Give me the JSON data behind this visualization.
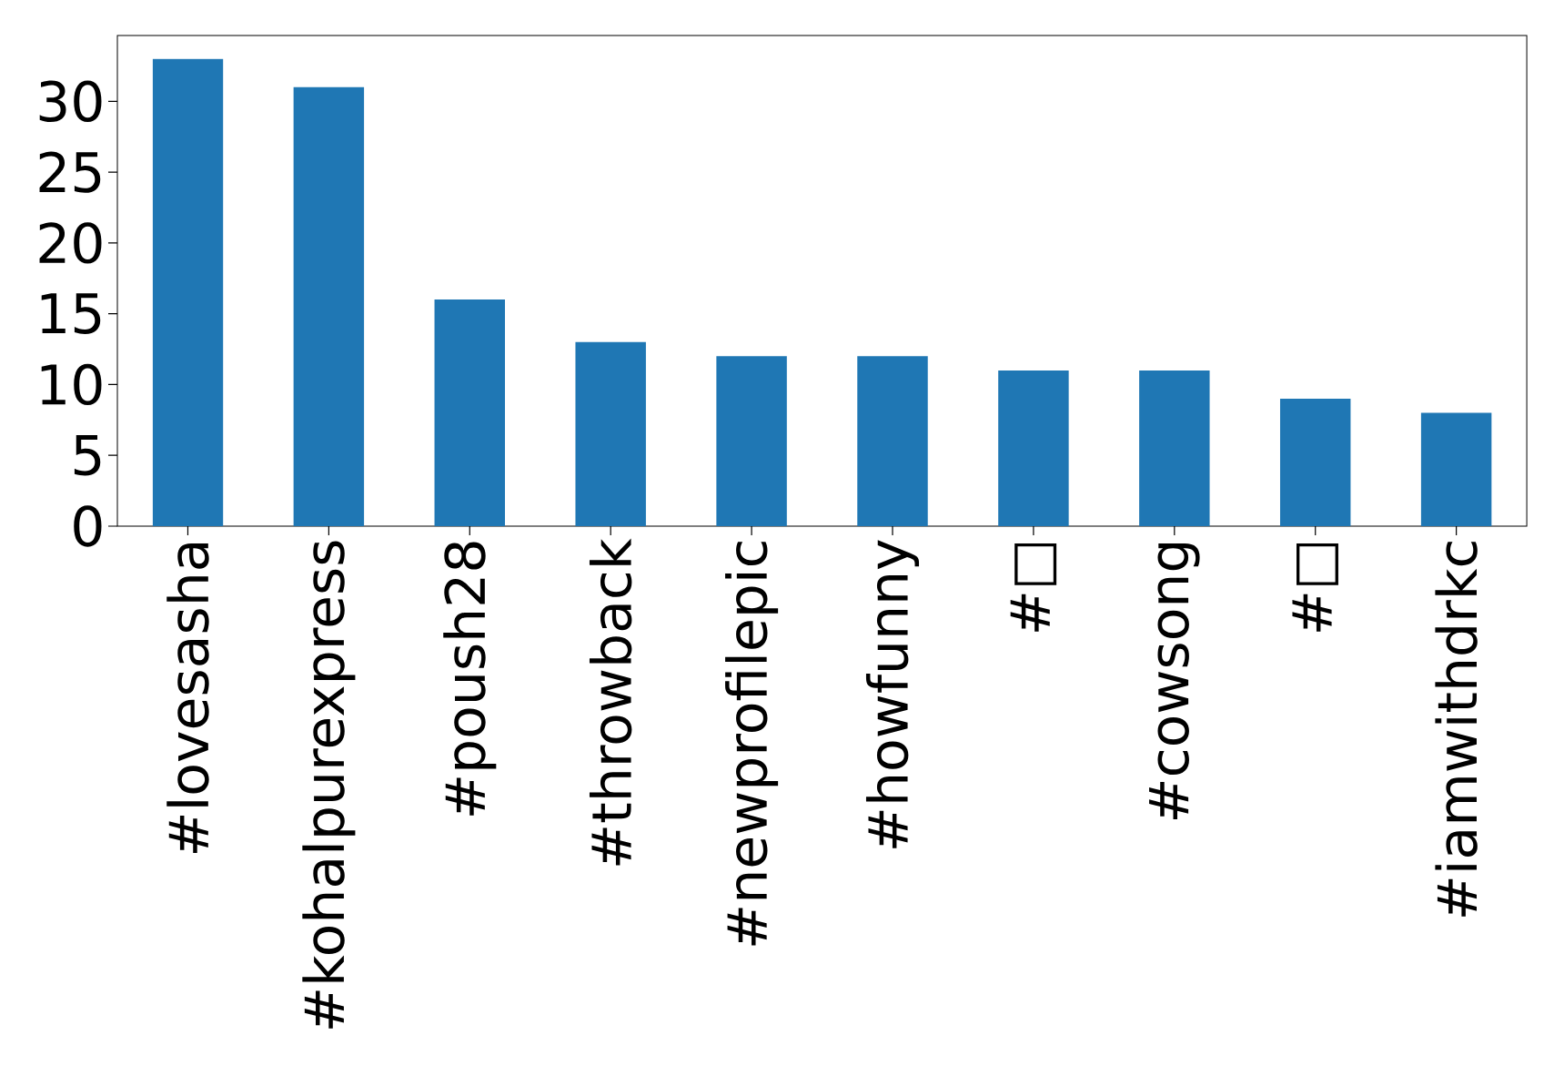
{
  "chart_data": {
    "type": "bar",
    "categories": [
      "#lovesasha",
      "#kohalpurexpress",
      "#poush28",
      "#throwback",
      "#newprofilepic",
      "#howfunny",
      "#□",
      "#cowsong",
      "#□",
      "#iamwithdrkc"
    ],
    "values": [
      33,
      31,
      16,
      13,
      12,
      12,
      11,
      11,
      9,
      8
    ],
    "color": "#1f77b4",
    "ylim": [
      0,
      34.65
    ],
    "yticks": [
      0,
      5,
      10,
      15,
      20,
      25,
      30
    ]
  }
}
